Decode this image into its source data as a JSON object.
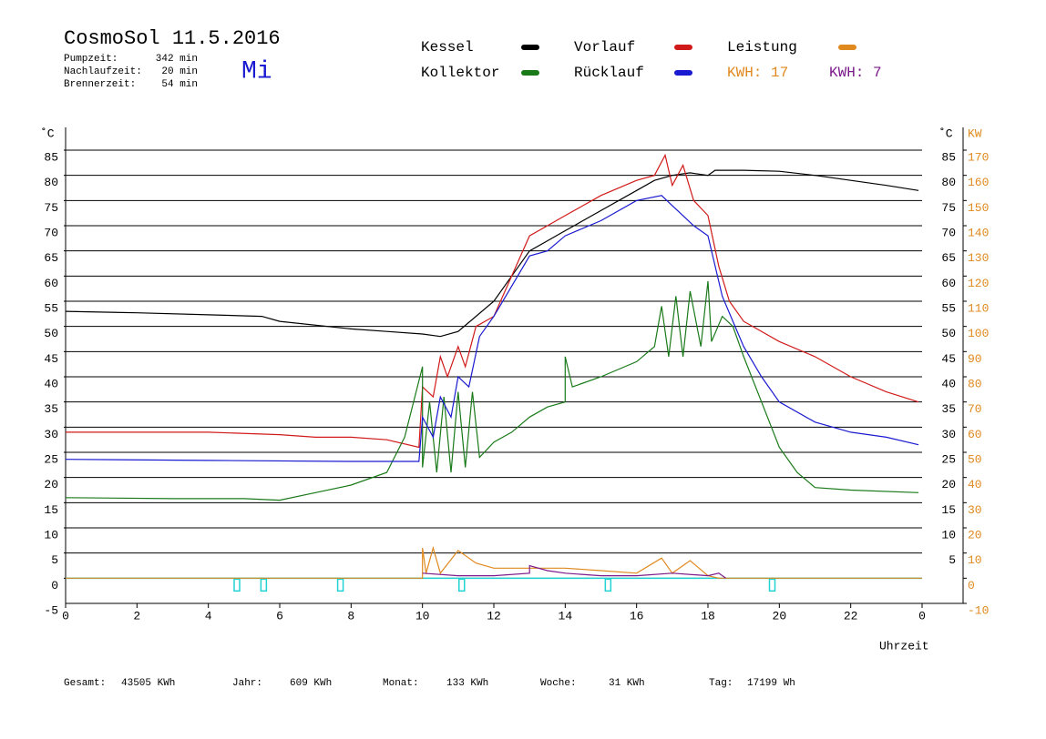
{
  "chart_data": {
    "type": "line",
    "title": "CosmoSol 11.5.2016",
    "weekday": "Mi",
    "header_info": [
      {
        "label": "Pumpzeit:",
        "value": "342 min"
      },
      {
        "label": "Nachlaufzeit:",
        "value": "20 min"
      },
      {
        "label": "Brennerzeit:",
        "value": "54 min"
      }
    ],
    "kwh_labels": [
      {
        "text": "KWH: 17",
        "color": "#e0891e"
      },
      {
        "text": "KWH: 7",
        "color": "#7b1a8a"
      }
    ],
    "footer_stats": [
      {
        "label": "Gesamt:",
        "value": "43505 KWh"
      },
      {
        "label": "Jahr:",
        "value": "609 KWh"
      },
      {
        "label": "Monat:",
        "value": "133 KWh"
      },
      {
        "label": "Woche:",
        "value": "31 KWh"
      },
      {
        "label": "Tag:",
        "value": "17199 Wh"
      }
    ],
    "xlabel": "Uhrzeit",
    "ylabel": "˚C",
    "y2label": "KW",
    "xlim": [
      0,
      24
    ],
    "xticks": [
      0,
      2,
      4,
      6,
      8,
      10,
      12,
      14,
      16,
      18,
      20,
      22,
      {
        "value": 24,
        "label": "0"
      }
    ],
    "ylim": [
      -5,
      85
    ],
    "yticks": [
      -5,
      0,
      5,
      10,
      15,
      20,
      25,
      30,
      35,
      40,
      45,
      50,
      55,
      60,
      65,
      70,
      75,
      80,
      85
    ],
    "yticks_right": [
      5,
      10,
      15,
      20,
      25,
      30,
      35,
      40,
      45,
      50,
      55,
      60,
      65,
      70,
      75,
      80,
      85
    ],
    "y2lim": [
      -10,
      170
    ],
    "y2ticks": [
      -10,
      0,
      10,
      20,
      30,
      40,
      50,
      60,
      70,
      80,
      90,
      100,
      110,
      120,
      130,
      140,
      150,
      160,
      170
    ],
    "grid": true,
    "series": [
      {
        "name": "Kessel",
        "color": "#000000",
        "x": [
          0,
          2,
          4,
          5.5,
          6,
          8,
          9,
          10,
          10.5,
          11,
          12,
          12.5,
          13,
          13.5,
          14,
          15,
          16,
          16.5,
          17,
          17.5,
          18,
          18.2,
          19,
          20,
          21,
          22,
          23,
          23.9
        ],
        "values": [
          53,
          52.7,
          52.3,
          52,
          51,
          49.5,
          49,
          48.5,
          48,
          49,
          55,
          60,
          65,
          67,
          69,
          73,
          77,
          79,
          80,
          80.5,
          80,
          81,
          81,
          80.8,
          80,
          79,
          78,
          77
        ]
      },
      {
        "name": "Vorlauf",
        "color": "#d11a1a",
        "x": [
          0,
          4,
          6,
          7,
          8,
          9,
          9.9,
          10,
          10.3,
          10.5,
          10.7,
          11,
          11.2,
          11.5,
          12,
          12.5,
          13,
          13.5,
          14,
          14.5,
          15,
          16,
          16.5,
          16.8,
          17,
          17.3,
          17.6,
          18,
          18.3,
          18.6,
          19,
          20,
          21,
          22,
          23,
          23.9
        ],
        "values": [
          29,
          29,
          28.5,
          28,
          28,
          27.5,
          26,
          38,
          36,
          44,
          40,
          46,
          42,
          50,
          52,
          60,
          68,
          70,
          72,
          74,
          76,
          79,
          80,
          84,
          78,
          82,
          75,
          72,
          62,
          55,
          51,
          47,
          44,
          40,
          37,
          35
        ]
      },
      {
        "name": "Leistung",
        "color": "#e0891e",
        "axis": "y2",
        "x": [
          0,
          10,
          10,
          10.1,
          10.3,
          10.5,
          11,
          11.5,
          12,
          13,
          14,
          15,
          16,
          16.7,
          17,
          17.5,
          18,
          18.3,
          24
        ],
        "values": [
          0,
          0,
          12,
          2,
          12,
          2,
          11,
          6,
          4,
          4,
          4,
          3,
          2,
          8,
          2,
          7,
          1,
          0,
          0
        ]
      },
      {
        "name": "Kollektor",
        "color": "#1a7a1a",
        "x": [
          0,
          3,
          5,
          6,
          7,
          8,
          9,
          9.5,
          10,
          10,
          10.2,
          10.4,
          10.6,
          10.8,
          11,
          11.2,
          11.4,
          11.6,
          12,
          12.5,
          13,
          13.5,
          14,
          14,
          14.2,
          15,
          16,
          16.5,
          16.7,
          16.9,
          17.1,
          17.3,
          17.5,
          17.8,
          18,
          18.1,
          18.4,
          18.7,
          19,
          19.5,
          20,
          20.5,
          21,
          22,
          23.9
        ],
        "values": [
          16,
          15.8,
          15.8,
          15.5,
          17,
          18.5,
          21,
          28,
          42,
          22,
          35,
          21,
          36,
          21,
          37,
          22,
          37,
          24,
          27,
          29,
          32,
          34,
          35,
          44,
          38,
          40,
          43,
          46,
          54,
          44,
          56,
          44,
          57,
          46,
          59,
          47,
          52,
          50,
          44,
          35,
          26,
          21,
          18,
          17.5,
          17
        ]
      },
      {
        "name": "Rücklauf",
        "color": "#1a1ad1",
        "x": [
          0,
          4,
          8,
          9.9,
          10,
          10.3,
          10.5,
          10.8,
          11,
          11.3,
          11.6,
          12,
          12.5,
          13,
          13.5,
          14,
          15,
          16,
          16.7,
          17,
          17.3,
          17.6,
          18,
          18.4,
          18.7,
          19,
          19.5,
          20,
          21,
          22,
          23,
          23.9
        ],
        "values": [
          23.6,
          23.4,
          23.2,
          23.2,
          32,
          28,
          36,
          32,
          40,
          38,
          48,
          52,
          58,
          64,
          65,
          68,
          71,
          75,
          76,
          74,
          72,
          70,
          68,
          56,
          51,
          46,
          40,
          35,
          31,
          29,
          28,
          26.5
        ]
      },
      {
        "color": "#7b1a8a",
        "axis": "y2",
        "x": [
          10,
          11,
          12,
          13,
          13,
          13.5,
          14,
          15,
          16,
          17,
          18,
          18.3,
          18.5
        ],
        "values": [
          2,
          1,
          1,
          2,
          5,
          3,
          2,
          1,
          1,
          2,
          1,
          2,
          0
        ]
      }
    ],
    "baseline_color": "#22d3d3",
    "pump_events": [
      4.8,
      5.55,
      7.7,
      11.1,
      15.2,
      19.8
    ]
  }
}
